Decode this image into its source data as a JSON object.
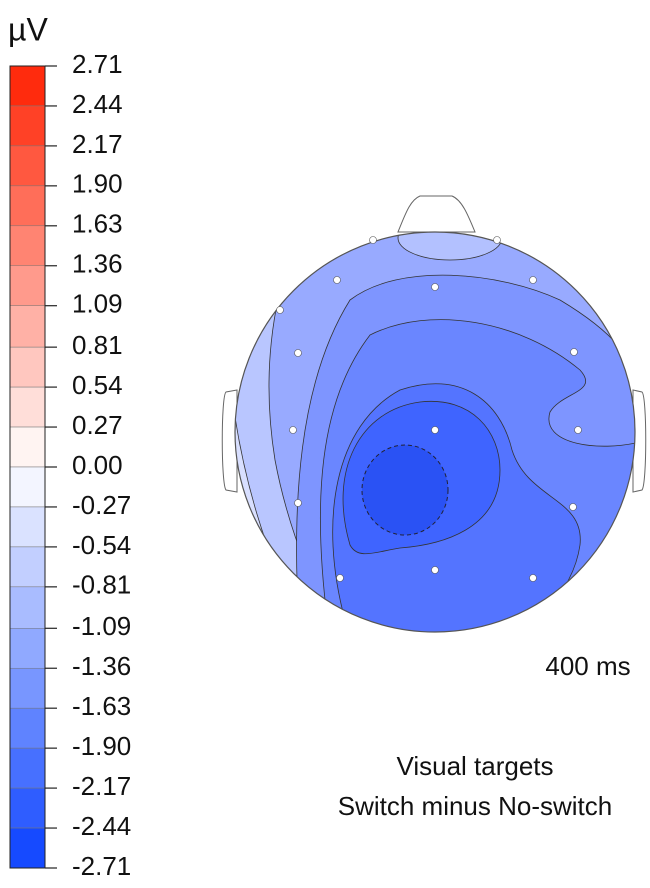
{
  "chart_data": {
    "type": "topomap",
    "colorbar_title": "µV",
    "zlim": [
      -2.71,
      2.71
    ],
    "colormap": {
      "high": "#ff2000",
      "mid": "#ffffff",
      "low": "#0a40ff"
    },
    "zticks": [
      2.71,
      2.44,
      2.17,
      {
        "value": 1.9,
        "label": "1.90"
      },
      1.63,
      1.36,
      1.09,
      0.81,
      0.54,
      0.27,
      {
        "value": 0,
        "label": "0.00"
      },
      -0.27,
      -0.54,
      -0.81,
      -1.09,
      -1.36,
      -1.63,
      {
        "value": -1.9,
        "label": "-1.90"
      },
      -2.17,
      -2.44,
      -2.71
    ],
    "time_label": "400 ms",
    "caption": [
      "Visual targets",
      "Switch minus No-switch"
    ]
  }
}
